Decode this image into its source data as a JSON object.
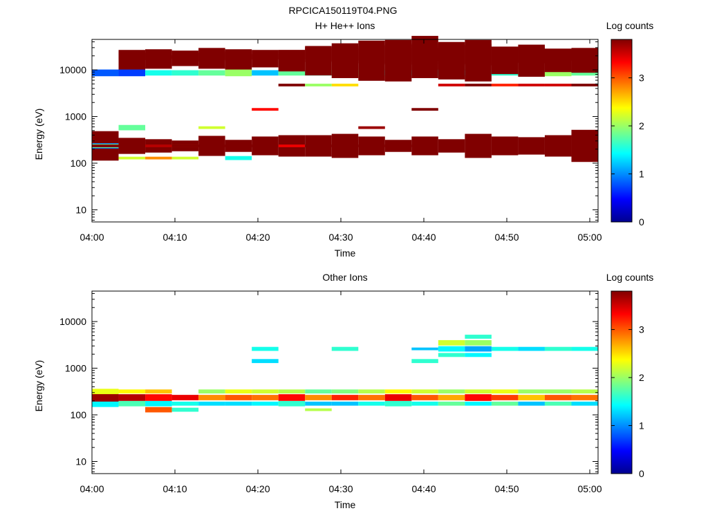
{
  "figure_title": "RPCICA150119T04.PNG",
  "colors": {
    "jet": [
      "#00008f",
      "#0000ff",
      "#0080ff",
      "#00ffff",
      "#80ff80",
      "#ffff00",
      "#ff8000",
      "#ff0000",
      "#800000"
    ]
  },
  "chart_data": [
    {
      "type": "heatmap",
      "title": "H+ He++ Ions",
      "xlabel": "Time",
      "ylabel": "Energy (eV)",
      "x_ticks": [
        "04:00",
        "04:10",
        "04:20",
        "04:30",
        "04:40",
        "04:50",
        "05:00"
      ],
      "y_ticks": [
        "10",
        "100",
        "1000",
        "10000"
      ],
      "y_scale": "log",
      "ylim": [
        5.5,
        45000
      ],
      "xlim_minutes": [
        0,
        61
      ],
      "colorbar": {
        "label": "Log counts",
        "ticks": [
          "0",
          "1",
          "2",
          "3"
        ],
        "range": [
          0,
          3.8
        ]
      },
      "cells": [
        [
          0,
          12,
          7.3,
          2.2
        ],
        [
          12,
          27,
          7.3,
          2.8
        ],
        [
          0,
          24,
          0.8,
          0.5
        ],
        [
          0,
          12,
          0.9,
          0.4
        ],
        [
          0,
          12,
          1.8,
          0.3
        ],
        [
          0,
          12,
          2.4,
          0.2
        ],
        [
          0,
          12,
          3.7,
          0.2
        ],
        [
          0,
          12,
          4.2,
          0.2
        ],
        [
          0,
          12,
          4.5,
          0.2
        ],
        [
          1,
          12,
          7.3,
          1.2
        ],
        [
          1,
          26,
          7.3,
          1.4
        ],
        [
          1,
          27,
          7.3,
          0.7
        ],
        [
          1,
          24,
          0.7,
          0.5
        ],
        [
          1,
          15,
          1.8,
          0.4
        ],
        [
          1,
          10,
          2.2,
          0.2
        ],
        [
          1,
          12,
          4.2,
          0.2
        ],
        [
          1,
          12,
          4.5,
          0.2
        ],
        [
          2,
          12,
          6.8,
          1.0
        ],
        [
          2,
          26,
          6.8,
          1.2
        ],
        [
          2,
          27,
          6.8,
          0.8
        ],
        [
          2,
          24,
          1.5,
          0.4
        ],
        [
          2,
          10,
          2.8,
          0.2
        ],
        [
          2,
          12,
          3.6,
          0.2
        ],
        [
          3,
          12,
          7.3,
          0.8
        ],
        [
          3,
          26,
          6.8,
          0.8
        ],
        [
          3,
          27,
          6.8,
          0.6
        ],
        [
          3,
          24,
          1.6,
          0.4
        ],
        [
          3,
          10,
          2.2,
          0.2
        ],
        [
          3,
          12,
          3.1,
          0.2
        ],
        [
          3,
          12,
          4.4,
          0.2
        ],
        [
          4,
          12,
          7.3,
          1.5
        ],
        [
          4,
          26,
          7.3,
          1.2
        ],
        [
          4,
          27,
          7.3,
          1.0
        ],
        [
          4,
          24,
          1.8,
          0.4
        ],
        [
          4,
          15,
          2.2,
          0.2
        ],
        [
          4,
          12,
          4.6,
          0.2
        ],
        [
          5,
          12,
          7.3,
          0.9
        ],
        [
          5,
          26,
          6.8,
          1.4
        ],
        [
          5,
          27,
          6.8,
          0.8
        ],
        [
          5,
          24,
          2.0,
          0.5
        ],
        [
          5,
          10,
          1.5,
          0.3
        ],
        [
          5,
          12,
          4.1,
          0.2
        ],
        [
          6,
          12,
          7.3,
          1.4
        ],
        [
          6,
          26,
          7.3,
          1.0
        ],
        [
          6,
          27,
          6.8,
          0.7
        ],
        [
          6,
          24,
          1.2,
          0.4
        ],
        [
          6,
          18,
          3.3,
          0.2
        ],
        [
          6,
          12,
          4.1,
          0.2
        ],
        [
          7,
          12,
          7.3,
          1.6
        ],
        [
          7,
          24,
          1.8,
          0.4
        ],
        [
          7,
          26,
          6.8,
          1.6
        ],
        [
          7,
          27,
          6.8,
          0.7
        ],
        [
          7,
          22,
          4.2,
          0.2
        ],
        [
          7,
          12,
          3.4,
          0.2
        ],
        [
          8,
          12,
          7.3,
          1.6
        ],
        [
          8,
          24,
          1.6,
          0.4
        ],
        [
          8,
          26,
          6.8,
          2.2
        ],
        [
          8,
          27,
          6.8,
          1.1
        ],
        [
          8,
          22,
          2.0,
          0.2
        ],
        [
          8,
          12,
          3.8,
          0.2
        ],
        [
          9,
          12,
          7.3,
          1.8
        ],
        [
          9,
          24,
          1.8,
          0.5
        ],
        [
          9,
          26,
          6.8,
          2.6
        ],
        [
          9,
          27,
          6.8,
          0.9
        ],
        [
          9,
          22,
          2.5,
          0.2
        ],
        [
          9,
          12,
          4.4,
          0.2
        ],
        [
          10,
          12,
          7.3,
          1.4
        ],
        [
          10,
          24,
          1.9,
          0.5
        ],
        [
          10,
          26,
          6.8,
          3.0
        ],
        [
          10,
          27,
          6.8,
          1.3
        ],
        [
          10,
          15,
          3.7,
          0.2
        ],
        [
          10,
          12,
          4.0,
          0.2
        ],
        [
          11,
          12,
          7.3,
          0.9
        ],
        [
          11,
          24,
          1.4,
          0.4
        ],
        [
          11,
          26,
          6.8,
          3.1
        ],
        [
          11,
          27,
          6.8,
          1.5
        ],
        [
          11,
          12,
          4.3,
          0.2
        ],
        [
          12,
          12,
          7.3,
          1.4
        ],
        [
          12,
          24,
          1.6,
          0.4
        ],
        [
          12,
          26,
          6.8,
          2.6
        ],
        [
          12,
          27,
          6.8,
          1.0
        ],
        [
          12,
          18,
          3.9,
          0.2
        ],
        [
          13,
          12,
          7.3,
          1.0
        ],
        [
          13,
          24,
          1.5,
          0.5
        ],
        [
          13,
          26,
          6.8,
          2.8
        ],
        [
          13,
          27,
          6.8,
          1.4
        ],
        [
          13,
          22,
          3.5,
          0.2
        ],
        [
          14,
          12,
          7.3,
          1.8
        ],
        [
          14,
          24,
          1.4,
          0.4
        ],
        [
          14,
          26,
          6.8,
          3.1
        ],
        [
          14,
          27,
          6.8,
          1.6
        ],
        [
          14,
          22,
          3.9,
          0.2
        ],
        [
          15,
          12,
          7.3,
          1.4
        ],
        [
          15,
          24,
          1.6,
          0.4
        ],
        [
          15,
          26,
          6.8,
          2.0
        ],
        [
          15,
          27,
          6.8,
          1.2
        ],
        [
          15,
          22,
          3.2,
          0.2
        ],
        [
          16,
          12,
          7.3,
          1.3
        ],
        [
          16,
          24,
          2.2,
          0.5
        ],
        [
          16,
          26,
          6.8,
          2.4
        ],
        [
          16,
          27,
          6.8,
          1.3
        ],
        [
          16,
          22,
          3.5,
          0.2
        ],
        [
          17,
          12,
          7.3,
          1.6
        ],
        [
          17,
          24,
          2.0,
          0.5
        ],
        [
          17,
          26,
          6.8,
          1.7
        ],
        [
          17,
          27,
          6.8,
          0.9
        ],
        [
          17,
          22,
          3.5,
          0.2
        ],
        [
          18,
          12,
          7.3,
          2.4
        ],
        [
          18,
          24,
          1.8,
          0.4
        ],
        [
          18,
          26,
          6.8,
          1.8
        ],
        [
          18,
          27,
          6.8,
          1.0
        ],
        [
          18,
          22,
          4.2,
          0.2
        ]
      ]
    },
    {
      "type": "heatmap",
      "title": "Other Ions",
      "xlabel": "Time",
      "ylabel": "Energy (eV)",
      "x_ticks": [
        "04:00",
        "04:10",
        "04:20",
        "04:30",
        "04:40",
        "04:50",
        "05:00"
      ],
      "y_ticks": [
        "10",
        "100",
        "1000",
        "10000"
      ],
      "y_scale": "log",
      "ylim": [
        5.5,
        45000
      ],
      "xlim_minutes": [
        0,
        61
      ],
      "colorbar": {
        "label": "Log counts",
        "ticks": [
          "0",
          "1",
          "2",
          "3"
        ],
        "range": [
          0,
          3.8
        ]
      },
      "cells": [
        [
          0,
          11,
          1.4,
          0.5
        ],
        [
          0,
          12,
          3.7,
          0.6
        ],
        [
          0,
          13,
          2.3,
          0.4
        ],
        [
          1,
          11,
          1.7,
          0.4
        ],
        [
          1,
          12,
          3.6,
          0.5
        ],
        [
          1,
          13,
          2.4,
          0.3
        ],
        [
          2,
          11,
          1.4,
          0.4
        ],
        [
          2,
          10,
          3.0,
          0.4
        ],
        [
          2,
          12,
          3.3,
          0.5
        ],
        [
          2,
          13,
          2.6,
          0.3
        ],
        [
          3,
          11,
          1.5,
          0.3
        ],
        [
          3,
          12,
          3.4,
          0.4
        ],
        [
          3,
          10,
          1.6,
          0.3
        ],
        [
          4,
          11,
          1.3,
          0.3
        ],
        [
          4,
          12,
          2.8,
          0.4
        ],
        [
          4,
          13,
          2.0,
          0.3
        ],
        [
          5,
          11,
          1.3,
          0.3
        ],
        [
          5,
          12,
          3.0,
          0.4
        ],
        [
          5,
          13,
          2.3,
          0.3
        ],
        [
          6,
          11,
          1.4,
          0.3
        ],
        [
          6,
          12,
          2.9,
          0.4
        ],
        [
          6,
          13,
          2.2,
          0.3
        ],
        [
          7,
          11,
          1.6,
          0.4
        ],
        [
          7,
          12,
          3.3,
          0.5
        ],
        [
          7,
          13,
          2.1,
          0.3
        ],
        [
          8,
          11,
          1.2,
          0.3
        ],
        [
          8,
          12,
          2.8,
          0.4
        ],
        [
          8,
          13,
          1.8,
          0.3
        ],
        [
          8,
          10,
          2.1,
          0.2
        ],
        [
          9,
          11,
          1.2,
          0.3
        ],
        [
          9,
          12,
          3.2,
          0.4
        ],
        [
          9,
          13,
          1.9,
          0.3
        ],
        [
          10,
          11,
          1.5,
          0.3
        ],
        [
          10,
          12,
          2.9,
          0.4
        ],
        [
          10,
          13,
          2.1,
          0.3
        ],
        [
          11,
          11,
          1.6,
          0.4
        ],
        [
          11,
          12,
          3.4,
          0.5
        ],
        [
          11,
          13,
          2.4,
          0.3
        ],
        [
          12,
          11,
          1.5,
          0.3
        ],
        [
          12,
          12,
          3.0,
          0.4
        ],
        [
          12,
          13,
          2.2,
          0.3
        ],
        [
          13,
          11,
          1.8,
          0.3
        ],
        [
          13,
          12,
          2.7,
          0.4
        ],
        [
          13,
          13,
          2.0,
          0.3
        ],
        [
          14,
          11,
          1.4,
          0.3
        ],
        [
          14,
          12,
          3.3,
          0.5
        ],
        [
          14,
          13,
          2.2,
          0.3
        ],
        [
          15,
          11,
          1.8,
          0.3
        ],
        [
          15,
          12,
          3.1,
          0.4
        ],
        [
          15,
          13,
          2.3,
          0.3
        ],
        [
          16,
          11,
          1.2,
          0.3
        ],
        [
          16,
          12,
          2.6,
          0.4
        ],
        [
          16,
          13,
          2.0,
          0.3
        ],
        [
          17,
          11,
          1.7,
          0.3
        ],
        [
          17,
          12,
          3.0,
          0.4
        ],
        [
          17,
          13,
          2.0,
          0.3
        ],
        [
          18,
          11,
          1.3,
          0.3
        ],
        [
          18,
          12,
          2.9,
          0.4
        ],
        [
          18,
          13,
          2.1,
          0.3
        ],
        [
          6,
          18,
          1.3,
          0.3
        ],
        [
          6,
          20,
          1.5,
          0.3
        ],
        [
          9,
          20,
          1.6,
          0.3
        ],
        [
          12,
          18,
          1.6,
          0.3
        ],
        [
          12,
          20,
          1.2,
          0.2
        ],
        [
          13,
          20,
          1.4,
          0.4
        ],
        [
          13,
          21,
          2.2,
          0.4
        ],
        [
          13,
          19,
          1.6,
          0.3
        ],
        [
          14,
          20,
          1.1,
          0.4
        ],
        [
          14,
          21,
          2.0,
          0.4
        ],
        [
          14,
          22,
          1.6,
          0.3
        ],
        [
          14,
          19,
          1.4,
          0.3
        ],
        [
          15,
          20,
          1.5,
          0.3
        ],
        [
          16,
          20,
          1.3,
          0.3
        ],
        [
          17,
          20,
          1.6,
          0.3
        ],
        [
          18,
          20,
          1.5,
          0.3
        ]
      ]
    }
  ]
}
